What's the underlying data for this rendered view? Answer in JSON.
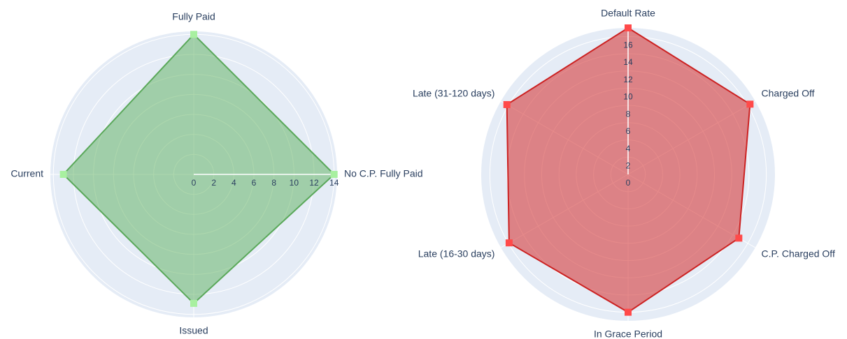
{
  "chart_data": [
    {
      "type": "radar",
      "categories": [
        "No C.P. Fully Paid",
        "Fully Paid",
        "Current",
        "Issued"
      ],
      "values": [
        14,
        14,
        13,
        12.9
      ],
      "color": "#5aa85a",
      "fill": "rgba(92,176,92,0.5)",
      "marker_color": "#a8f0a0",
      "rlim": [
        0,
        14.3
      ],
      "rticks": [
        0,
        2,
        4,
        6,
        8,
        10,
        12,
        14
      ],
      "rotation": 0,
      "direction": "counterclockwise",
      "grid": true
    },
    {
      "type": "radar",
      "categories": [
        "Default Rate",
        "Charged Off",
        "C.P. Charged Off",
        "In Grace Period",
        "Late (16-30 days)",
        "Late (31-120 days)"
      ],
      "values": [
        17,
        16.3,
        14.8,
        16,
        15.9,
        16.2
      ],
      "color": "#cc2222",
      "fill": "rgba(214,60,60,0.6)",
      "marker_color": "#ff4a4a",
      "rlim": [
        0,
        17
      ],
      "rticks": [
        0,
        2,
        4,
        6,
        8,
        10,
        12,
        14,
        16
      ],
      "rotation": 90,
      "direction": "clockwise",
      "grid": true
    }
  ]
}
